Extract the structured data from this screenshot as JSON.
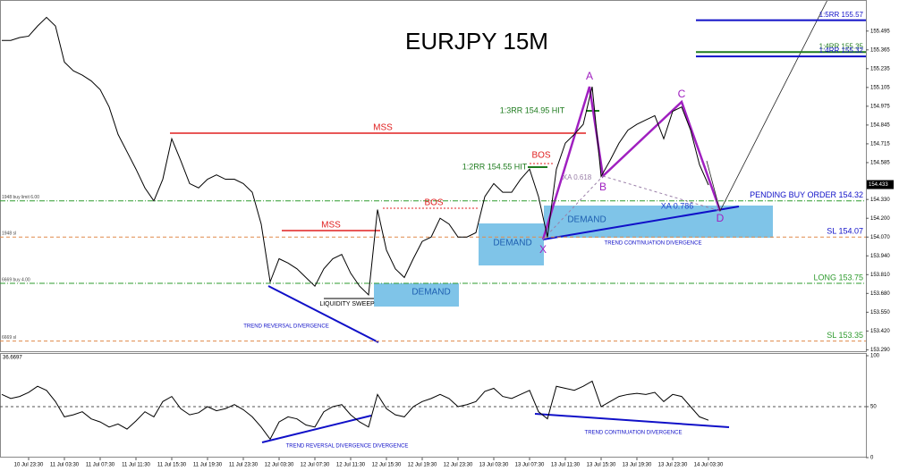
{
  "chart_data": [
    {
      "type": "line",
      "title": "EURJPY 15M",
      "categories": [
        null,
        null,
        null,
        "10 Jul 23:30",
        null,
        null,
        null,
        "11 Jul 03:30",
        null,
        null,
        null,
        "11 Jul 07:30",
        null,
        null,
        null,
        "11 Jul 11:30",
        null,
        null,
        null,
        "11 Jul 15:30",
        null,
        null,
        null,
        "11 Jul 19:30",
        null,
        null,
        null,
        "11 Jul 23:30",
        null,
        null,
        null,
        "12 Jul 03:30",
        null,
        null,
        null,
        "12 Jul 07:30",
        null,
        null,
        null,
        "12 Jul 11:30",
        null,
        null,
        null,
        "12 Jul 15:30",
        null,
        null,
        null,
        "12 Jul 19:30",
        null,
        null,
        null,
        "12 Jul 23:30",
        null,
        null,
        null,
        "13 Jul 03:30",
        null,
        null,
        null,
        "13 Jul 07:30",
        null,
        null,
        null,
        "13 Jul 11:30",
        null,
        null,
        null,
        "13 Jul 15:30",
        null,
        null,
        null,
        "13 Jul 19:30",
        null,
        null,
        null,
        "13 Jul 23:30",
        null,
        null,
        null,
        "14 Jul 03:30"
      ],
      "series": [
        {
          "color": "#000000",
          "values": [
            155.43,
            155.43,
            155.45,
            155.46,
            155.53,
            155.59,
            155.53,
            155.28,
            155.22,
            155.19,
            155.15,
            155.09,
            154.97,
            154.78,
            154.66,
            154.54,
            154.41,
            154.32,
            154.47,
            154.75,
            154.6,
            154.44,
            154.41,
            154.47,
            154.5,
            154.47,
            154.47,
            154.44,
            154.38,
            154.16,
            153.76,
            153.92,
            153.89,
            153.85,
            153.79,
            153.73,
            153.85,
            153.92,
            153.95,
            153.82,
            153.73,
            153.67,
            154.26,
            153.98,
            153.85,
            153.79,
            153.92,
            154.04,
            154.07,
            154.2,
            154.16,
            154.07,
            154.07,
            154.1,
            154.35,
            154.44,
            154.38,
            154.38,
            154.47,
            154.54,
            154.35,
            154.07,
            154.54,
            154.72,
            154.78,
            154.85,
            155.11,
            154.49,
            154.6,
            154.72,
            154.81,
            154.85,
            154.88,
            154.91,
            154.75,
            154.94,
            154.97,
            154.81,
            154.57,
            154.43
          ]
        }
      ],
      "ylim": [
        153.28,
        155.71
      ],
      "yticks": [
        155.495,
        155.365,
        155.235,
        155.105,
        154.975,
        154.845,
        154.715,
        154.585,
        {
          "value": 154.33,
          "label": "154.330"
        },
        {
          "value": 154.2,
          "label": "154.200"
        },
        {
          "value": 154.07,
          "label": "154.070"
        },
        {
          "value": 153.94,
          "label": "153.940"
        },
        {
          "value": 153.81,
          "label": "153.810"
        },
        {
          "value": 153.68,
          "label": "153.680"
        },
        {
          "value": 153.55,
          "label": "153.550"
        },
        {
          "value": 153.42,
          "label": "153.420"
        },
        {
          "value": 153.29,
          "label": "153.290"
        }
      ],
      "last_price": 154.433,
      "levels": [
        {
          "label": "1:5RR 155.57",
          "value": 155.57,
          "color": "#1010c8"
        },
        {
          "label": "1:4RR 155.35",
          "value": 155.35,
          "color": "#1e7b1e"
        },
        {
          "label": "1:4RR 155.32",
          "value": 155.32,
          "color": "#1010c8"
        },
        {
          "label": "PENDING BUY ORDER 154.32",
          "value": 154.32,
          "color": "#1010c8",
          "line_color": "#2e9b2e",
          "order_label": "1948 buy limit 6.00"
        },
        {
          "label": "SL 154.07",
          "value": 154.07,
          "color": "#1010c8",
          "line_color": "#e08a4a",
          "order_label": "1948 sl"
        },
        {
          "label": "LONG 153.75",
          "value": 153.75,
          "color": "#2e9b2e",
          "line_color": "#2e9b2e",
          "order_label": "6669 buy 4.00"
        },
        {
          "label": "SL 153.35",
          "value": 153.35,
          "color": "#2e9b2e",
          "line_color": "#e08a4a",
          "order_label": "6669 sl"
        }
      ],
      "annotations": [
        {
          "text": "MSS",
          "color": "#e02020"
        },
        {
          "text": "MSS",
          "color": "#e02020"
        },
        {
          "text": "BOS",
          "color": "#e02020"
        },
        {
          "text": "BOS",
          "color": "#e02020"
        },
        {
          "text": "1:3RR 154.95 HIT",
          "color": "#1e7b1e"
        },
        {
          "text": "1:2RR 154.55 HIT",
          "color": "#1e7b1e"
        },
        {
          "text": "A",
          "color": "#a020c0"
        },
        {
          "text": "B",
          "color": "#a020c0"
        },
        {
          "text": "C",
          "color": "#a020c0"
        },
        {
          "text": "D",
          "color": "#a020c0"
        },
        {
          "text": "X",
          "color": "#a020c0"
        },
        {
          "text": "XA 0.618",
          "color": "#9a7fa8"
        },
        {
          "text": "XA 0.786",
          "color": "#2040d0"
        },
        {
          "text": "DEMAND",
          "color": "#1e5fb0"
        },
        {
          "text": "DEMAND",
          "color": "#1e5fb0"
        },
        {
          "text": "DEMAND",
          "color": "#1e5fb0"
        },
        {
          "text": "LIQUIDITY SWEEP",
          "color": "#000000"
        },
        {
          "text": "TREND REVERSAL DIVERGENCE",
          "color": "#1010c8"
        },
        {
          "text": "TREND CONTINUATION DIVERGENCE",
          "color": "#1010c8"
        }
      ]
    },
    {
      "type": "line",
      "series": [
        {
          "color": "#000000",
          "values": [
            62,
            58,
            60,
            64,
            70,
            66,
            55,
            40,
            42,
            45,
            38,
            35,
            30,
            33,
            28,
            36,
            45,
            40,
            55,
            60,
            48,
            42,
            44,
            50,
            46,
            48,
            52,
            47,
            40,
            30,
            18,
            35,
            40,
            38,
            32,
            30,
            45,
            50,
            52,
            42,
            35,
            30,
            62,
            48,
            42,
            40,
            50,
            55,
            58,
            62,
            58,
            50,
            52,
            55,
            65,
            68,
            60,
            58,
            62,
            66,
            45,
            38,
            70,
            68,
            66,
            70,
            75,
            50,
            55,
            60,
            62,
            63,
            62,
            64,
            55,
            62,
            60,
            50,
            40,
            36.6697
          ]
        }
      ],
      "ylim": [
        0,
        100
      ],
      "yticks": [
        0,
        50,
        100
      ],
      "annotations": [
        {
          "text": "TREND REVERSAL DIVERGENCE DIVERGENCE",
          "color": "#1010c8"
        },
        {
          "text": "TREND CONTINUATION DIVERGENCE",
          "color": "#1010c8"
        }
      ]
    }
  ]
}
